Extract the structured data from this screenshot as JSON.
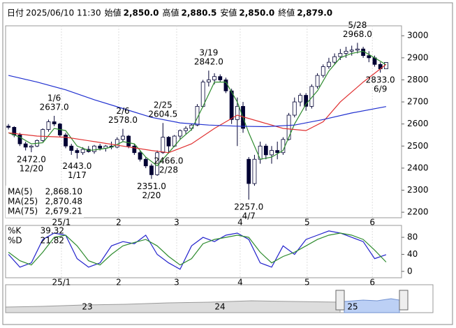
{
  "header": {
    "fields": [
      {
        "label": "日付",
        "value": "2025/06/10 11:30",
        "color": "#000000"
      },
      {
        "label": "始値",
        "value": "2,850.0",
        "color": "#000000"
      },
      {
        "label": "高値",
        "value": "2,880.5",
        "color": "#dd0000"
      },
      {
        "label": "安値",
        "value": "2,850.0",
        "color": "#008000"
      },
      {
        "label": "終値",
        "value": "2,879.0",
        "color": "#000000"
      }
    ]
  },
  "chart_data": [
    {
      "type": "candlestick",
      "up_color": "#ffffff",
      "down_color": "#000033",
      "xlim": [
        -0.5,
        68.7
      ],
      "ylim": [
        2175,
        3045
      ],
      "yticks": [
        2200,
        2300,
        2400,
        2500,
        2600,
        2700,
        2800,
        2900,
        3000
      ],
      "xticks": [
        {
          "value": 9.26,
          "label": "25/1"
        },
        {
          "value": 19.27,
          "label": "2"
        },
        {
          "value": 29.4,
          "label": "3"
        },
        {
          "value": 40.5,
          "label": "4"
        },
        {
          "value": 52.2,
          "label": "5"
        },
        {
          "value": 63.6,
          "label": "6"
        }
      ],
      "candles": [
        [
          2590,
          2600,
          2575,
          2585
        ],
        [
          2585,
          2590,
          2540,
          2550
        ],
        [
          2550,
          2560,
          2500,
          2510
        ],
        [
          2510,
          2520,
          2480,
          2495
        ],
        [
          2495,
          2505,
          2472,
          2500
        ],
        [
          2500,
          2530,
          2495,
          2525
        ],
        [
          2525,
          2580,
          2520,
          2575
        ],
        [
          2575,
          2620,
          2565,
          2610
        ],
        [
          2610,
          2637,
          2590,
          2600
        ],
        [
          2600,
          2605,
          2540,
          2550
        ],
        [
          2550,
          2560,
          2490,
          2500
        ],
        [
          2500,
          2510,
          2460,
          2480
        ],
        [
          2480,
          2490,
          2443,
          2470
        ],
        [
          2470,
          2495,
          2460,
          2485
        ],
        [
          2485,
          2500,
          2470,
          2475
        ],
        [
          2475,
          2505,
          2465,
          2500
        ],
        [
          2500,
          2510,
          2480,
          2490
        ],
        [
          2490,
          2505,
          2475,
          2500
        ],
        [
          2500,
          2520,
          2485,
          2495
        ],
        [
          2495,
          2540,
          2490,
          2530
        ],
        [
          2530,
          2578,
          2520,
          2545
        ],
        [
          2545,
          2550,
          2490,
          2500
        ],
        [
          2500,
          2510,
          2460,
          2470
        ],
        [
          2470,
          2480,
          2430,
          2440
        ],
        [
          2440,
          2450,
          2400,
          2410
        ],
        [
          2410,
          2420,
          2351,
          2370
        ],
        [
          2370,
          2480,
          2365,
          2470
        ],
        [
          2470,
          2604.5,
          2465,
          2540
        ],
        [
          2540,
          2545,
          2466,
          2500
        ],
        [
          2500,
          2550,
          2495,
          2545
        ],
        [
          2545,
          2575,
          2530,
          2570
        ],
        [
          2570,
          2590,
          2555,
          2580
        ],
        [
          2580,
          2600,
          2570,
          2595
        ],
        [
          2595,
          2690,
          2590,
          2680
        ],
        [
          2680,
          2800,
          2675,
          2790
        ],
        [
          2790,
          2842,
          2770,
          2800
        ],
        [
          2800,
          2830,
          2780,
          2815
        ],
        [
          2815,
          2825,
          2790,
          2800
        ],
        [
          2800,
          2810,
          2740,
          2750
        ],
        [
          2750,
          2760,
          2600,
          2620
        ],
        [
          2620,
          2720,
          2500,
          2680
        ],
        [
          2680,
          2700,
          2560,
          2580
        ],
        [
          2440,
          2450,
          2257,
          2330
        ],
        [
          2330,
          2460,
          2320,
          2440
        ],
        [
          2440,
          2520,
          2420,
          2500
        ],
        [
          2500,
          2510,
          2440,
          2460
        ],
        [
          2460,
          2500,
          2420,
          2480
        ],
        [
          2480,
          2520,
          2440,
          2470
        ],
        [
          2470,
          2540,
          2460,
          2530
        ],
        [
          2530,
          2650,
          2525,
          2640
        ],
        [
          2640,
          2720,
          2630,
          2700
        ],
        [
          2700,
          2740,
          2680,
          2730
        ],
        [
          2730,
          2740,
          2660,
          2680
        ],
        [
          2680,
          2780,
          2670,
          2770
        ],
        [
          2770,
          2830,
          2760,
          2820
        ],
        [
          2820,
          2870,
          2810,
          2860
        ],
        [
          2860,
          2900,
          2850,
          2880
        ],
        [
          2880,
          2920,
          2870,
          2905
        ],
        [
          2905,
          2940,
          2890,
          2920
        ],
        [
          2920,
          2950,
          2900,
          2930
        ],
        [
          2930,
          2955,
          2910,
          2935
        ],
        [
          2935,
          2968,
          2920,
          2940
        ],
        [
          2940,
          2950,
          2900,
          2910
        ],
        [
          2910,
          2930,
          2880,
          2900
        ],
        [
          2900,
          2910,
          2860,
          2870
        ],
        [
          2870,
          2880,
          2833,
          2850
        ],
        [
          2850,
          2880.5,
          2850,
          2879
        ]
      ],
      "series": [
        {
          "name": "MA(5)",
          "color": "#2e8b2e",
          "x": [
            0,
            2,
            4,
            6,
            8,
            10,
            12,
            14,
            16,
            18,
            20,
            22,
            24,
            26,
            28,
            30,
            32,
            34,
            36,
            38,
            40,
            42,
            44,
            46,
            48,
            50,
            52,
            54,
            56,
            58,
            60,
            62,
            64,
            66
          ],
          "values": [
            2560,
            2540,
            2510,
            2515,
            2580,
            2570,
            2500,
            2480,
            2485,
            2495,
            2520,
            2510,
            2450,
            2410,
            2470,
            2530,
            2575,
            2680,
            2790,
            2790,
            2700,
            2560,
            2440,
            2450,
            2480,
            2600,
            2690,
            2750,
            2840,
            2900,
            2920,
            2930,
            2900,
            2868
          ]
        },
        {
          "name": "MA(25)",
          "color": "#e03030",
          "x": [
            0,
            5,
            10,
            15,
            20,
            25,
            28,
            32,
            36,
            40,
            44,
            48,
            52,
            55,
            58,
            62,
            64,
            66
          ],
          "values": [
            2560,
            2545,
            2540,
            2520,
            2500,
            2480,
            2470,
            2510,
            2580,
            2640,
            2610,
            2580,
            2570,
            2610,
            2700,
            2790,
            2830,
            2870
          ]
        },
        {
          "name": "MA(75)",
          "color": "#2030d0",
          "x": [
            0,
            5,
            10,
            15,
            20,
            25,
            30,
            35,
            40,
            45,
            50,
            55,
            60,
            66
          ],
          "values": [
            2820,
            2790,
            2755,
            2710,
            2670,
            2630,
            2605,
            2595,
            2590,
            2588,
            2595,
            2620,
            2650,
            2679
          ]
        }
      ],
      "legend_values": [
        "2,868.10",
        "2,870.48",
        "2,679.21"
      ],
      "annotations": [
        {
          "date": "12/20",
          "price": {
            "value": 2472,
            "label": "2472.0"
          }
        },
        {
          "date": "1/6",
          "price": {
            "value": 2637,
            "label": "2637.0"
          }
        },
        {
          "date": "1/17",
          "price": {
            "value": 2443,
            "label": "2443.0"
          }
        },
        {
          "date": "2/6",
          "price": {
            "value": 2578,
            "label": "2578.0"
          }
        },
        {
          "date": "2/20",
          "price": {
            "value": 2351,
            "label": "2351.0"
          }
        },
        {
          "date": "2/25",
          "price": 2604.5
        },
        {
          "date": "2/28",
          "price": {
            "value": 2466,
            "label": "2466.0"
          }
        },
        {
          "date": "3/19",
          "price": {
            "value": 2842,
            "label": "2842.0"
          }
        },
        {
          "date": "4/7",
          "price": {
            "value": 2257,
            "label": "2257.0"
          }
        },
        {
          "date": "5/28",
          "price": {
            "value": 2968,
            "label": "2968.0"
          }
        },
        {
          "date": "6/9",
          "price": {
            "value": 2833,
            "label": "2833.0"
          }
        }
      ]
    },
    {
      "type": "line",
      "xlim": [
        -0.5,
        68.7
      ],
      "ylim": [
        -15,
        108
      ],
      "yticks": [
        0,
        40,
        80
      ],
      "xticks": [
        {
          "value": 9.26,
          "label": "25/1"
        },
        {
          "value": 19.27,
          "label": "2"
        },
        {
          "value": 29.4,
          "label": "3"
        },
        {
          "value": 40.5,
          "label": "4"
        },
        {
          "value": 52.2,
          "label": "5"
        },
        {
          "value": 63.6,
          "label": "6"
        }
      ],
      "series": [
        {
          "name": "%K",
          "color": "#2222cc",
          "x": [
            0,
            2,
            4,
            6,
            8,
            10,
            12,
            14,
            16,
            18,
            20,
            22,
            24,
            26,
            28,
            30,
            32,
            34,
            36,
            38,
            40,
            42,
            44,
            46,
            48,
            50,
            52,
            54,
            56,
            58,
            60,
            62,
            64,
            66
          ],
          "values": [
            40,
            10,
            20,
            75,
            90,
            85,
            30,
            10,
            20,
            60,
            70,
            65,
            85,
            40,
            20,
            5,
            60,
            80,
            70,
            85,
            90,
            75,
            20,
            10,
            60,
            40,
            75,
            85,
            95,
            90,
            80,
            70,
            30,
            39.32
          ]
        },
        {
          "name": "%D",
          "color": "#2e8b2e",
          "x": [
            0,
            2,
            4,
            6,
            8,
            10,
            12,
            14,
            16,
            18,
            20,
            22,
            24,
            26,
            28,
            30,
            32,
            34,
            36,
            38,
            40,
            42,
            44,
            46,
            48,
            50,
            52,
            54,
            56,
            58,
            60,
            62,
            64,
            66
          ],
          "values": [
            45,
            25,
            15,
            45,
            80,
            85,
            60,
            25,
            15,
            40,
            60,
            68,
            75,
            60,
            35,
            15,
            30,
            65,
            75,
            80,
            85,
            80,
            45,
            20,
            35,
            45,
            60,
            75,
            85,
            90,
            85,
            75,
            50,
            21.82
          ]
        }
      ],
      "legend_values": [
        "39.32",
        "21.82"
      ]
    }
  ],
  "navigator": {
    "labels": [
      "23",
      "24",
      "25"
    ]
  }
}
